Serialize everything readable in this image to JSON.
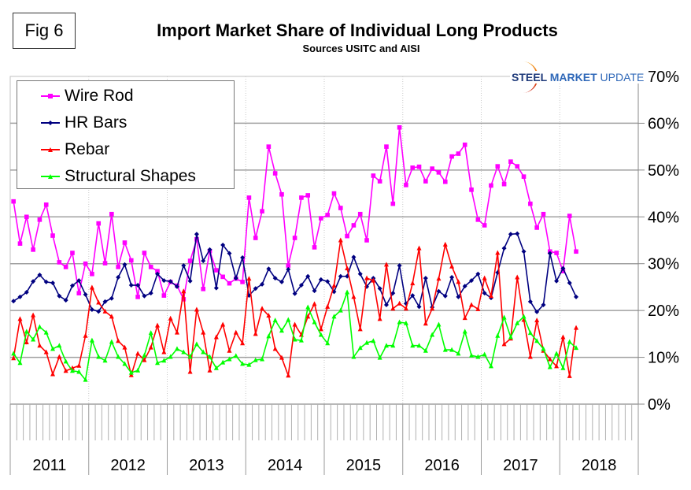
{
  "figure_label": "Fig 6",
  "logo": {
    "bold": "STEEL",
    "mid": " MARKET",
    "light": " UPDATE"
  },
  "chart_data": {
    "type": "line",
    "title": "Import Market Share of Individual Long Products",
    "subtitle": "Sources USITC and AISI",
    "xlabel": "",
    "ylabel": "",
    "ylim": [
      0,
      70
    ],
    "yticks": [
      "0%",
      "10%",
      "20%",
      "30%",
      "40%",
      "50%",
      "60%",
      "70%"
    ],
    "x_start": "2011-01",
    "x_end": "2018-12",
    "x_period": "monthly",
    "year_labels": [
      "2011",
      "2012",
      "2013",
      "2014",
      "2015",
      "2016",
      "2017",
      "2018"
    ],
    "grid": "horizontal",
    "legend_position": "top-left",
    "series": [
      {
        "name": "Wire Rod",
        "color": "#ff00ff",
        "marker": "square",
        "values": [
          43.3,
          34.3,
          40,
          33,
          39.4,
          42.6,
          36,
          30.3,
          29.3,
          32.3,
          23.7,
          30,
          27.8,
          38.6,
          30.1,
          40.6,
          29.3,
          34.5,
          30.7,
          22.9,
          32.3,
          29.3,
          28.4,
          23.2,
          26.1,
          25.3,
          22.4,
          30.6,
          35.2,
          24.6,
          32.7,
          28.6,
          27.2,
          25.8,
          26.8,
          26.1,
          44.1,
          35.5,
          41.2,
          55,
          49.3,
          44.8,
          29.6,
          35.5,
          44.1,
          44.6,
          33.5,
          39.7,
          40.4,
          45,
          41.9,
          35.9,
          38.2,
          40.6,
          35,
          48.8,
          47.6,
          55,
          42.8,
          59.1,
          46.8,
          50.5,
          50.7,
          47.6,
          50.3,
          49.5,
          47.5,
          52.9,
          53.5,
          55.4,
          45.8,
          39.4,
          38.2,
          46.7,
          50.8,
          47,
          51.8,
          50.8,
          48.6,
          42.8,
          37.7,
          40.6,
          32.6,
          32.3,
          28.4,
          40.2,
          32.6
        ]
      },
      {
        "name": "HR Bars",
        "color": "#000080",
        "marker": "diamond",
        "values": [
          22,
          22.9,
          23.9,
          26.2,
          27.6,
          26.1,
          25.9,
          23.1,
          22.2,
          25.3,
          26.4,
          23.4,
          20.2,
          19.8,
          21.9,
          22.6,
          27.1,
          29.8,
          25.4,
          25.4,
          23.1,
          23.7,
          27.8,
          26.4,
          26.2,
          25.1,
          29.6,
          26.3,
          36.3,
          30.6,
          33,
          24.8,
          34,
          32.2,
          26.9,
          31.3,
          23.2,
          24.7,
          25.6,
          28.9,
          26.9,
          26.1,
          28.8,
          23.6,
          25.4,
          27.3,
          24.2,
          26.6,
          26.2,
          24,
          27.3,
          27.3,
          31.4,
          27.8,
          25.1,
          26.9,
          24.7,
          21.2,
          23.7,
          29.6,
          21.5,
          23.2,
          20.8,
          26.9,
          20.7,
          24.1,
          23.1,
          27.1,
          22.9,
          25.2,
          26.4,
          27.8,
          23.7,
          22.7,
          28.1,
          33.3,
          36.3,
          36.4,
          32.6,
          21.9,
          19.7,
          21.2,
          32.2,
          26.3,
          29,
          25.9,
          22.9
        ]
      },
      {
        "name": "Rebar",
        "color": "#ff0000",
        "marker": "triangle",
        "values": [
          9.8,
          18.2,
          13.2,
          19,
          12.5,
          11.1,
          6.4,
          10.1,
          7.1,
          7.7,
          8.2,
          14.6,
          24.9,
          21.7,
          19.8,
          18.7,
          13.5,
          12.1,
          6.2,
          10.8,
          9.4,
          12.1,
          16.8,
          11.1,
          18.3,
          15.3,
          24.1,
          6.9,
          20.2,
          15.3,
          7.2,
          14.3,
          17,
          11.4,
          15.3,
          13,
          26.8,
          15,
          20.4,
          18.9,
          11.8,
          9.9,
          6.1,
          17,
          14.8,
          18.7,
          21.4,
          16,
          20.8,
          25.3,
          35,
          29,
          22.9,
          16,
          26.9,
          26.4,
          18.2,
          29.8,
          20.4,
          21.5,
          20.4,
          25.8,
          33.3,
          17.2,
          20.4,
          26.8,
          34.1,
          29.4,
          26.1,
          18.4,
          21.2,
          20.3,
          26.9,
          23.1,
          32.3,
          12.8,
          14,
          27.1,
          18,
          10.1,
          17.9,
          11.4,
          9.6,
          8.1,
          14.3,
          6,
          16.3
        ]
      },
      {
        "name": "Structural Shapes",
        "color": "#00ff00",
        "marker": "triangle",
        "values": [
          10.8,
          8.8,
          15.5,
          13.8,
          16.5,
          15.3,
          11.8,
          12.5,
          9.1,
          7.1,
          6.9,
          5.2,
          13.6,
          10.1,
          9.3,
          13.3,
          10.1,
          8.6,
          6.7,
          7.2,
          10.4,
          15.2,
          8.8,
          9.3,
          10.1,
          11.8,
          11.1,
          10.1,
          12.8,
          11.1,
          10.1,
          7.7,
          8.9,
          9.6,
          10.3,
          8.6,
          8.4,
          9.4,
          9.6,
          14.5,
          17.9,
          15.7,
          18,
          13.8,
          13.6,
          20.7,
          17.5,
          14.8,
          13,
          18.7,
          20,
          23.9,
          10.1,
          12,
          13.1,
          13.5,
          9.9,
          12.5,
          12.5,
          17.5,
          17.3,
          12.5,
          12.5,
          11.4,
          14.8,
          17,
          11.6,
          11.6,
          10.8,
          15.5,
          10.4,
          10.1,
          10.6,
          8.1,
          14.6,
          18.5,
          14.3,
          17.3,
          18.7,
          15.2,
          13.5,
          11.8,
          7.9,
          10.8,
          7.7,
          13.3,
          12
        ]
      }
    ]
  }
}
